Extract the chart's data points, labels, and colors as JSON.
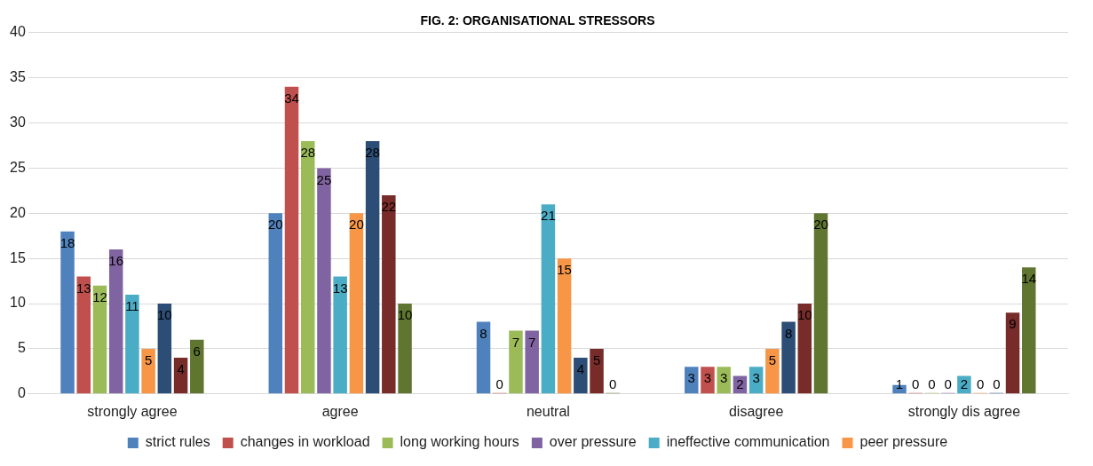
{
  "chart_data": {
    "type": "bar",
    "title": "FIG. 2: ORGANISATIONAL STRESSORS",
    "categories": [
      "strongly agree",
      "agree",
      "neutral",
      "disagree",
      "strongly dis agree"
    ],
    "series": [
      {
        "name": "strict rules",
        "color": "#4f81bd",
        "values": [
          18,
          20,
          8,
          3,
          1
        ]
      },
      {
        "name": "changes in workload",
        "color": "#c0504d",
        "values": [
          13,
          34,
          0,
          3,
          0
        ]
      },
      {
        "name": "long working hours",
        "color": "#9bbb59",
        "values": [
          12,
          28,
          7,
          3,
          0
        ]
      },
      {
        "name": "over pressure",
        "color": "#8064a2",
        "values": [
          16,
          25,
          7,
          2,
          0
        ]
      },
      {
        "name": "ineffective communication",
        "color": "#4bacc6",
        "values": [
          11,
          13,
          21,
          3,
          2
        ]
      },
      {
        "name": "peer pressure",
        "color": "#f79646",
        "values": [
          5,
          20,
          15,
          5,
          0
        ]
      },
      {
        "color": "#2c4d75",
        "values": [
          10,
          28,
          4,
          8,
          0
        ]
      },
      {
        "color": "#772c2a",
        "values": [
          4,
          22,
          5,
          10,
          9
        ]
      },
      {
        "color": "#5f7530",
        "values": [
          6,
          10,
          0,
          20,
          14
        ]
      }
    ],
    "ylim": [
      0,
      40
    ],
    "yticks": [
      0,
      5,
      10,
      15,
      20,
      25,
      30,
      35,
      40
    ],
    "grid": "y",
    "legend": "bottom",
    "data_labels": true
  }
}
